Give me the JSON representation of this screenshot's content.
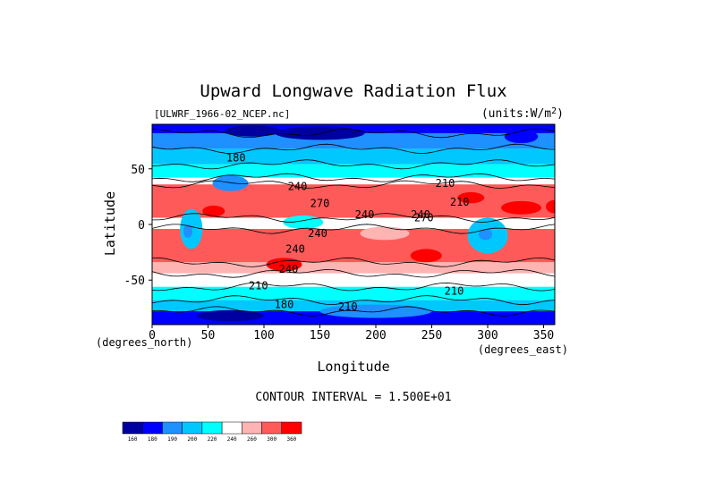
{
  "chart_data": {
    "type": "heatmap",
    "title": "Upward Longwave Radiation Flux",
    "file_label": "[ULWRF_1966-02_NCEP.nc]",
    "units_label": "(units:W/m^2)",
    "xlabel": "Longitude",
    "ylabel": "Latitude",
    "x_unit_label": "(degrees_east)",
    "y_unit_label": "(degrees_north)",
    "xlim": [
      0,
      360
    ],
    "ylim": [
      -90,
      90
    ],
    "x_ticks": [
      0,
      50,
      100,
      150,
      200,
      250,
      300,
      350
    ],
    "y_ticks": [
      -50,
      0,
      50
    ],
    "x_tick_labels": [
      "0",
      "50",
      "100",
      "150",
      "200",
      "250",
      "300",
      "350"
    ],
    "y_tick_labels": [
      "-50",
      "0",
      "50"
    ],
    "contour_interval_text": "CONTOUR INTERVAL = 1.500E+01",
    "contour_labels": [
      {
        "lon": 75,
        "lat": 60,
        "text": "180"
      },
      {
        "lon": 130,
        "lat": 34,
        "text": "240"
      },
      {
        "lon": 150,
        "lat": 19,
        "text": "270"
      },
      {
        "lon": 262,
        "lat": 37,
        "text": "210"
      },
      {
        "lon": 275,
        "lat": 20,
        "text": "210"
      },
      {
        "lon": 190,
        "lat": 9,
        "text": "240"
      },
      {
        "lon": 240,
        "lat": 9,
        "text": "240"
      },
      {
        "lon": 243,
        "lat": 6,
        "text": "270"
      },
      {
        "lon": 148,
        "lat": -8,
        "text": "240"
      },
      {
        "lon": 128,
        "lat": -22,
        "text": "240"
      },
      {
        "lon": 122,
        "lat": -40,
        "text": "240"
      },
      {
        "lon": 95,
        "lat": -55,
        "text": "210"
      },
      {
        "lon": 270,
        "lat": -60,
        "text": "210"
      },
      {
        "lon": 118,
        "lat": -72,
        "text": "180"
      },
      {
        "lon": 175,
        "lat": -74,
        "text": "210"
      }
    ],
    "colorbar": {
      "levels": [
        "160",
        "180",
        "190",
        "200",
        "220",
        "240",
        "260",
        "300",
        "360"
      ],
      "colors": [
        "#0000a0",
        "#0000ff",
        "#1e90ff",
        "#00c8ff",
        "#00ffff",
        "#ffffff",
        "#ffb4b4",
        "#ff5a5a",
        "#ff0000"
      ]
    },
    "bands": [
      {
        "lat": [
          90,
          82
        ],
        "level": 1
      },
      {
        "lat": [
          82,
          68
        ],
        "level": 2
      },
      {
        "lat": [
          68,
          54
        ],
        "level": 3
      },
      {
        "lat": [
          54,
          42
        ],
        "level": 4
      },
      {
        "lat": [
          42,
          36
        ],
        "level": 5
      },
      {
        "lat": [
          36,
          6
        ],
        "level": 7
      },
      {
        "lat": [
          6,
          -4
        ],
        "level": 5
      },
      {
        "lat": [
          -4,
          -34
        ],
        "level": 7
      },
      {
        "lat": [
          -34,
          -44
        ],
        "level": 6
      },
      {
        "lat": [
          -44,
          -56
        ],
        "level": 5
      },
      {
        "lat": [
          -56,
          -68
        ],
        "level": 4
      },
      {
        "lat": [
          -68,
          -78
        ],
        "level": 3
      },
      {
        "lat": [
          -78,
          -90
        ],
        "level": 1
      }
    ],
    "regions": [
      {
        "lon": 55,
        "lat": 12,
        "rlon": 10,
        "rlat": 5,
        "level": 8
      },
      {
        "lon": 330,
        "lat": 15,
        "rlon": 18,
        "rlat": 6,
        "level": 8
      },
      {
        "lon": 360,
        "lat": 16,
        "rlon": 8,
        "rlat": 6,
        "level": 8
      },
      {
        "lon": 285,
        "lat": 24,
        "rlon": 12,
        "rlat": 5,
        "level": 8
      },
      {
        "lon": 35,
        "lat": -4,
        "rlon": 10,
        "rlat": 18,
        "level": 3
      },
      {
        "lon": 32,
        "lat": -6,
        "rlon": 4,
        "rlat": 6,
        "level": 2
      },
      {
        "lon": 300,
        "lat": -10,
        "rlon": 18,
        "rlat": 16,
        "level": 3
      },
      {
        "lon": 298,
        "lat": -9,
        "rlon": 6,
        "rlat": 5,
        "level": 2
      },
      {
        "lon": 135,
        "lat": 2,
        "rlon": 18,
        "rlat": 6,
        "level": 4
      },
      {
        "lon": 170,
        "lat": 0,
        "rlon": 15,
        "rlat": 4,
        "level": 5
      },
      {
        "lon": 208,
        "lat": -8,
        "rlon": 22,
        "rlat": 6,
        "level": 6
      },
      {
        "lon": 70,
        "lat": 37,
        "rlon": 16,
        "rlat": 7,
        "level": 2
      },
      {
        "lon": 118,
        "lat": -36,
        "rlon": 16,
        "rlat": 6,
        "level": 8
      },
      {
        "lon": 245,
        "lat": -28,
        "rlon": 14,
        "rlat": 6,
        "level": 8
      },
      {
        "lon": 150,
        "lat": 82,
        "rlon": 40,
        "rlat": 6,
        "level": 0
      },
      {
        "lon": 90,
        "lat": 84,
        "rlon": 25,
        "rlat": 5,
        "level": 0
      },
      {
        "lon": 330,
        "lat": 79,
        "rlon": 15,
        "rlat": 6,
        "level": 1
      },
      {
        "lon": 200,
        "lat": -78,
        "rlon": 50,
        "rlat": 6,
        "level": 2
      },
      {
        "lon": 70,
        "lat": -82,
        "rlon": 30,
        "rlat": 5,
        "level": 0
      }
    ]
  }
}
